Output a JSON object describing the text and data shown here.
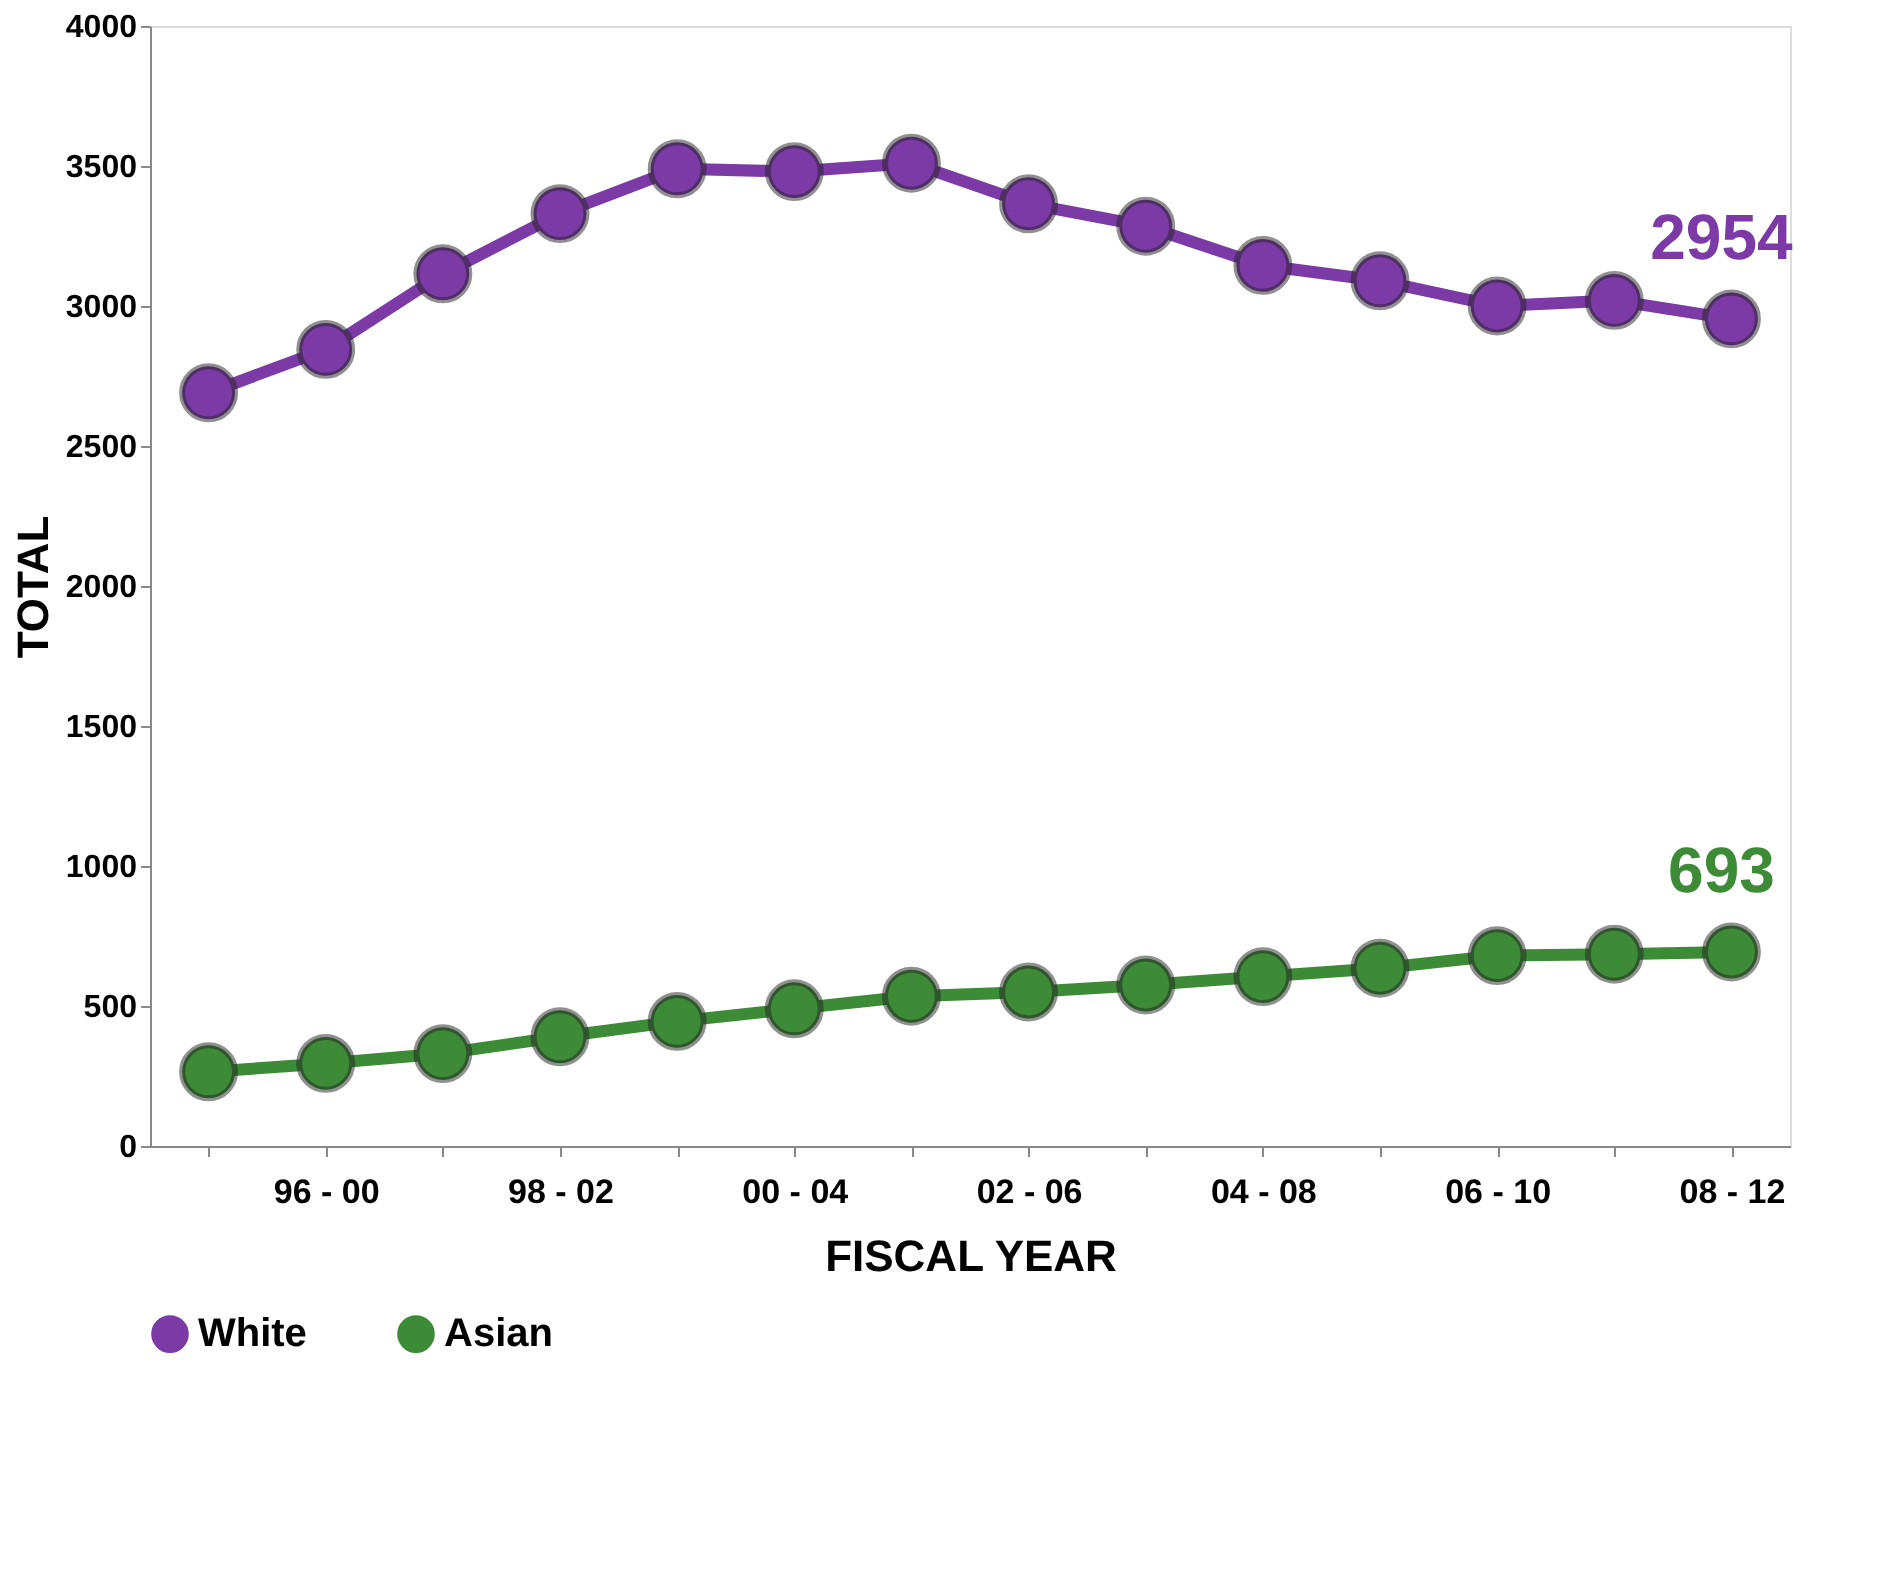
{
  "chart_data": {
    "type": "line",
    "xlabel": "FISCAL YEAR",
    "ylabel": "TOTAL",
    "categories": [
      null,
      "96 - 00",
      null,
      "98 - 02",
      null,
      "00 - 04",
      null,
      "02 - 06",
      null,
      "04 - 08",
      null,
      "06 - 10",
      null,
      "08 - 12"
    ],
    "series": [
      {
        "name": "White",
        "color": "#7b3aa6",
        "values": [
          2690,
          2845,
          3115,
          3330,
          3490,
          3480,
          3510,
          3365,
          3285,
          3145,
          3090,
          3000,
          3020,
          2954
        ],
        "value_labels": [
          null,
          null,
          null,
          null,
          null,
          null,
          null,
          null,
          null,
          null,
          null,
          null,
          null,
          "2954"
        ]
      },
      {
        "name": "Asian",
        "color": "#3d8b37",
        "values": [
          265,
          295,
          330,
          390,
          445,
          490,
          535,
          550,
          575,
          605,
          635,
          680,
          685,
          693
        ],
        "value_labels": [
          null,
          null,
          null,
          null,
          null,
          null,
          null,
          null,
          null,
          null,
          null,
          null,
          null,
          "693"
        ]
      }
    ],
    "ylim": [
      0,
      4000
    ],
    "yticks": [
      0,
      500,
      1000,
      1500,
      2000,
      2500,
      3000,
      3500,
      4000
    ],
    "grid": false,
    "legend": "bottom",
    "marker": "circle",
    "line_style": "solid"
  }
}
